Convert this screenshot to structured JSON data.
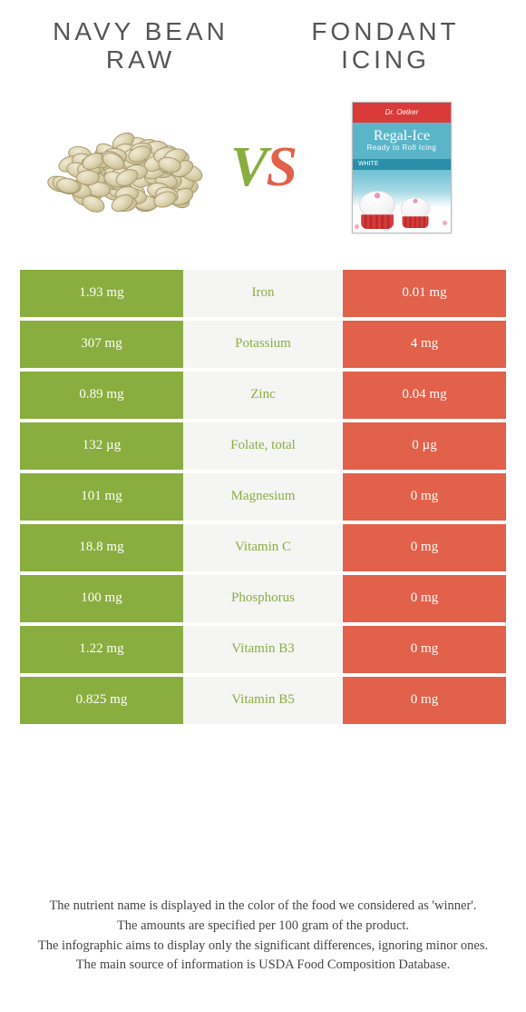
{
  "left": {
    "title_line1": "Navy bean",
    "title_line2": "raw",
    "color": "#8aad3f"
  },
  "right": {
    "title_line1": "Fondant",
    "title_line2": "icing",
    "color": "#e1614a"
  },
  "vs": {
    "v": "V",
    "s": "S"
  },
  "nutrients": [
    {
      "name": "Iron",
      "left": "1.93 mg",
      "right": "0.01 mg",
      "winner": "left"
    },
    {
      "name": "Potassium",
      "left": "307 mg",
      "right": "4 mg",
      "winner": "left"
    },
    {
      "name": "Zinc",
      "left": "0.89 mg",
      "right": "0.04 mg",
      "winner": "left"
    },
    {
      "name": "Folate, total",
      "left": "132 µg",
      "right": "0 µg",
      "winner": "left"
    },
    {
      "name": "Magnesium",
      "left": "101 mg",
      "right": "0 mg",
      "winner": "left"
    },
    {
      "name": "Vitamin C",
      "left": "18.8 mg",
      "right": "0 mg",
      "winner": "left"
    },
    {
      "name": "Phosphorus",
      "left": "100 mg",
      "right": "0 mg",
      "winner": "left"
    },
    {
      "name": "Vitamin B3",
      "left": "1.22 mg",
      "right": "0 mg",
      "winner": "left"
    },
    {
      "name": "Vitamin B5",
      "left": "0.825 mg",
      "right": "0 mg",
      "winner": "left"
    }
  ],
  "footnotes": [
    "The nutrient name is displayed in the color of the food we considered as 'winner'.",
    "The amounts are specified per 100 gram of the product.",
    "The infographic aims to display only the significant differences, ignoring minor ones.",
    "The main source of information is USDA Food Composition Database."
  ],
  "fondant_box": {
    "brand": "Dr. Oetker",
    "name": "Regal-Ice",
    "sub": "Ready to Roll Icing",
    "label": "WHITE"
  },
  "colors": {
    "left_bg": "#8aad3f",
    "right_bg": "#e1614a",
    "mid_bg": "#f5f5f3",
    "page_bg": "#ffffff"
  }
}
